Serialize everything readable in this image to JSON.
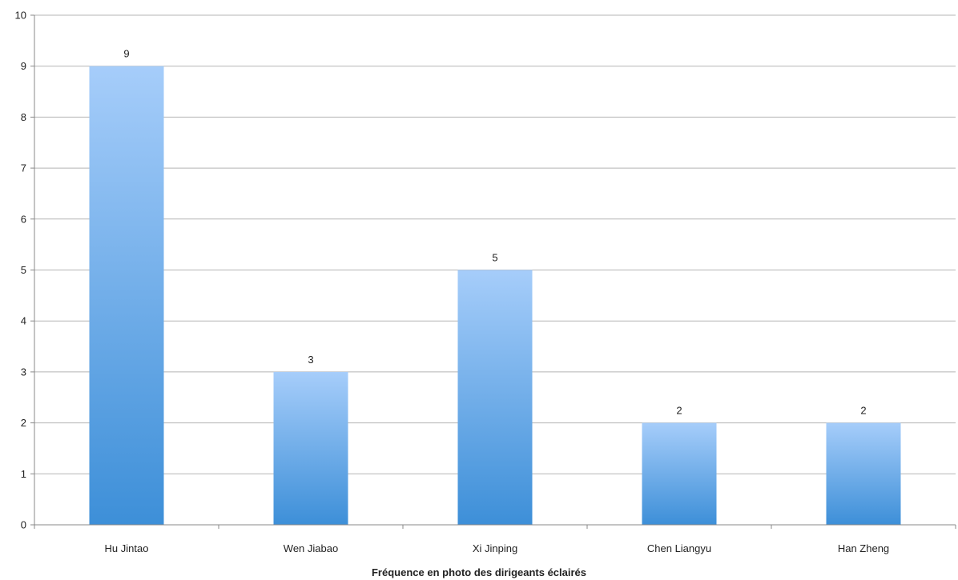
{
  "chart_data": {
    "type": "bar",
    "title": "",
    "xlabel": "Fréquence en photo des dirigeants éclairés",
    "ylabel": "",
    "categories": [
      "Hu Jintao",
      "Wen Jiabao",
      "Xi Jinping",
      "Chen Liangyu",
      "Han Zheng"
    ],
    "values": [
      9,
      3,
      5,
      2,
      2
    ],
    "ylim": [
      0,
      10
    ],
    "yticks": [
      0,
      1,
      2,
      3,
      4,
      5,
      6,
      7,
      8,
      9,
      10
    ],
    "grid": true,
    "legend": "none",
    "bar_gradient": {
      "top": "#a6cdfa",
      "bottom": "#3d8fd8"
    }
  }
}
